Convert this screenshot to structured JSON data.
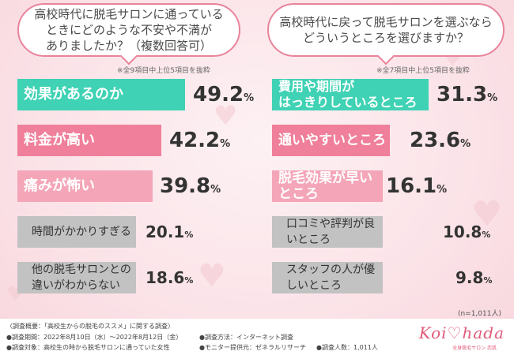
{
  "colors": {
    "teal": "#3fd2b4",
    "pink": "#ef7f9a",
    "light_pink": "#f4a6b8",
    "gray": "#c2c2c2"
  },
  "left_panel": {
    "question": "高校時代に脱毛サロンに通っている\nときにどのような不安や不満が\nありましたか？（複数回答可）",
    "note": "※全9項目中上位5項目を抜粋"
  },
  "right_panel": {
    "question": "高校時代に戻って脱毛サロンを選ぶなら\nどういうところを選びますか？",
    "note": "※全7項目中上位5項目を抜粋"
  },
  "chart_data": [
    {
      "type": "bar",
      "orientation": "horizontal",
      "title": "高校時代に脱毛サロンに通っているときにどのような不安や不満がありましたか？（複数回答可）",
      "categories": [
        "効果があるのか",
        "料金が高い",
        "痛みが怖い",
        "時間がかかりすぎる",
        "他の脱毛サロンとの\n違いがわからない"
      ],
      "values": [
        49.2,
        42.2,
        39.8,
        20.1,
        18.6
      ],
      "labels": [
        "49.2",
        "42.2",
        "39.8",
        "20.1",
        "18.6"
      ],
      "unit": "%",
      "bar_colors": [
        "#3fd2b4",
        "#ef7f9a",
        "#f4a6b8",
        "#c2c2c2",
        "#c2c2c2"
      ]
    },
    {
      "type": "bar",
      "orientation": "horizontal",
      "title": "高校時代に戻って脱毛サロンを選ぶならどういうところを選びますか？",
      "categories": [
        "費用や期間が\nはっきりしているところ",
        "通いやすいところ",
        "脱毛効果が早いところ",
        "口コミや評判が良いところ",
        "スタッフの人が優しいところ"
      ],
      "values": [
        31.3,
        23.6,
        16.1,
        10.8,
        9.8
      ],
      "labels": [
        "31.3",
        "23.6",
        "16.1",
        "10.8",
        "9.8"
      ],
      "unit": "%",
      "bar_colors": [
        "#3fd2b4",
        "#ef7f9a",
        "#f4a6b8",
        "#c2c2c2",
        "#c2c2c2"
      ]
    }
  ],
  "sample_size": "(n=1,011人)",
  "footer": {
    "overview": "〈調査概要：「高校生からの脱毛のススメ」に関する調査〉",
    "period": "●調査期間：2022年8月10日（水）〜2022年8月12日（金）",
    "method": "●調査方法：インターネット調査",
    "target": "●調査対象：高校生の時から脱毛サロンに通っていた女性",
    "provider": "●モニター提供元：ゼネラルリサーチ",
    "count": "●調査人数：1,011人"
  },
  "logo": {
    "text": "Koi♡hada",
    "sub": "全身脱毛サロン 恋肌"
  }
}
